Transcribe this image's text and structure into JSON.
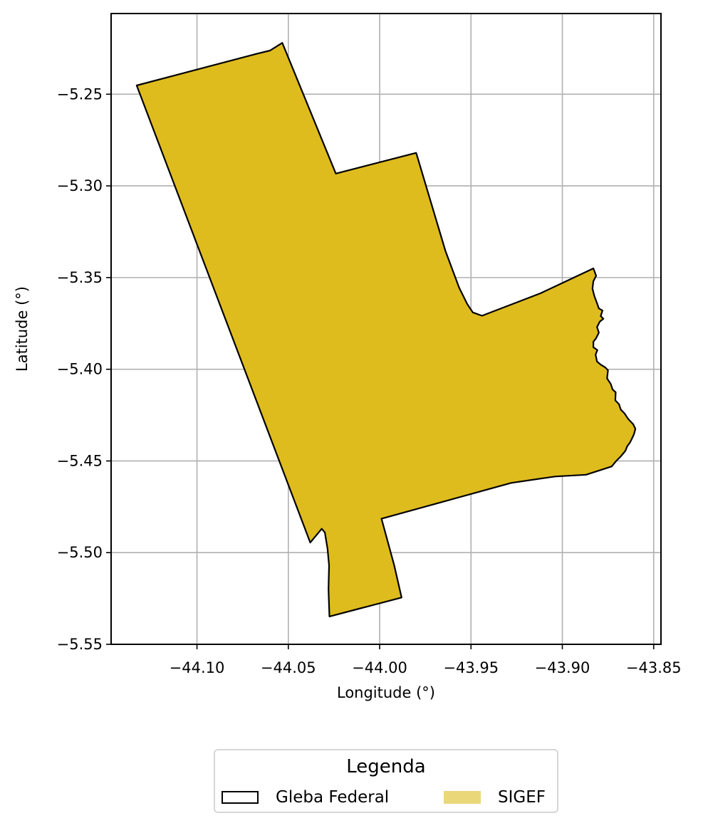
{
  "map": {
    "xlabel": "Longitude (°)",
    "ylabel": "Latitude (°)",
    "xlim": [
      -44.147,
      -43.846
    ],
    "ylim": [
      -5.55,
      -5.206
    ],
    "x_ticks": [
      -44.1,
      -44.05,
      -44.0,
      -43.95,
      -43.9,
      -43.85
    ],
    "x_tick_labels": [
      "−44.10",
      "−44.05",
      "−44.00",
      "−43.95",
      "−43.90",
      "−43.85"
    ],
    "y_ticks": [
      -5.25,
      -5.3,
      -5.35,
      -5.4,
      -5.45,
      -5.5,
      -5.55
    ],
    "y_tick_labels": [
      "−5.25",
      "−5.30",
      "−5.35",
      "−5.40",
      "−5.45",
      "−5.50",
      "−5.55"
    ],
    "grid": true,
    "fill_color": "#dfbc1e",
    "edge_color": "#000000",
    "polygon": [
      [
        -44.133,
        -5.2452
      ],
      [
        -44.0675,
        -5.228
      ],
      [
        -44.06,
        -5.2262
      ],
      [
        -44.0533,
        -5.222
      ],
      [
        -44.024,
        -5.2933
      ],
      [
        -43.98,
        -5.282
      ],
      [
        -43.964,
        -5.3355
      ],
      [
        -43.9565,
        -5.3555
      ],
      [
        -43.952,
        -5.3645
      ],
      [
        -43.949,
        -5.369
      ],
      [
        -43.944,
        -5.3708
      ],
      [
        -43.912,
        -5.3586
      ],
      [
        -43.883,
        -5.345
      ],
      [
        -43.8815,
        -5.349
      ],
      [
        -43.883,
        -5.352
      ],
      [
        -43.8835,
        -5.356
      ],
      [
        -43.8825,
        -5.36
      ],
      [
        -43.881,
        -5.364
      ],
      [
        -43.88,
        -5.3668
      ],
      [
        -43.878,
        -5.368
      ],
      [
        -43.879,
        -5.371
      ],
      [
        -43.8775,
        -5.3725
      ],
      [
        -43.8795,
        -5.374
      ],
      [
        -43.881,
        -5.377
      ],
      [
        -43.88,
        -5.38
      ],
      [
        -43.8815,
        -5.383
      ],
      [
        -43.883,
        -5.385
      ],
      [
        -43.883,
        -5.388
      ],
      [
        -43.8808,
        -5.3895
      ],
      [
        -43.8818,
        -5.392
      ],
      [
        -43.881,
        -5.3958
      ],
      [
        -43.879,
        -5.3975
      ],
      [
        -43.8765,
        -5.399
      ],
      [
        -43.875,
        -5.4005
      ],
      [
        -43.8755,
        -5.405
      ],
      [
        -43.8735,
        -5.408
      ],
      [
        -43.8725,
        -5.411
      ],
      [
        -43.8708,
        -5.4125
      ],
      [
        -43.871,
        -5.417
      ],
      [
        -43.869,
        -5.419
      ],
      [
        -43.868,
        -5.422
      ],
      [
        -43.866,
        -5.424
      ],
      [
        -43.864,
        -5.427
      ],
      [
        -43.8612,
        -5.43
      ],
      [
        -43.86,
        -5.4325
      ],
      [
        -43.8608,
        -5.4355
      ],
      [
        -43.862,
        -5.438
      ],
      [
        -43.863,
        -5.44
      ],
      [
        -43.8645,
        -5.442
      ],
      [
        -43.8655,
        -5.4445
      ],
      [
        -43.868,
        -5.4475
      ],
      [
        -43.8705,
        -5.45
      ],
      [
        -43.873,
        -5.453
      ],
      [
        -43.887,
        -5.4575
      ],
      [
        -43.904,
        -5.4585
      ],
      [
        -43.928,
        -5.462
      ],
      [
        -43.999,
        -5.4815
      ],
      [
        -43.992,
        -5.507
      ],
      [
        -43.988,
        -5.5245
      ],
      [
        -44.0275,
        -5.5348
      ],
      [
        -44.028,
        -5.52
      ],
      [
        -44.0277,
        -5.507
      ],
      [
        -44.0285,
        -5.498
      ],
      [
        -44.03,
        -5.489
      ],
      [
        -44.0317,
        -5.487
      ],
      [
        -44.038,
        -5.4945
      ]
    ]
  },
  "legend": {
    "title": "Legenda",
    "items": [
      {
        "label": "Gleba Federal",
        "style": "outline",
        "color": "#000000"
      },
      {
        "label": "SIGEF",
        "style": "fill",
        "color": "#ead77a"
      }
    ]
  }
}
